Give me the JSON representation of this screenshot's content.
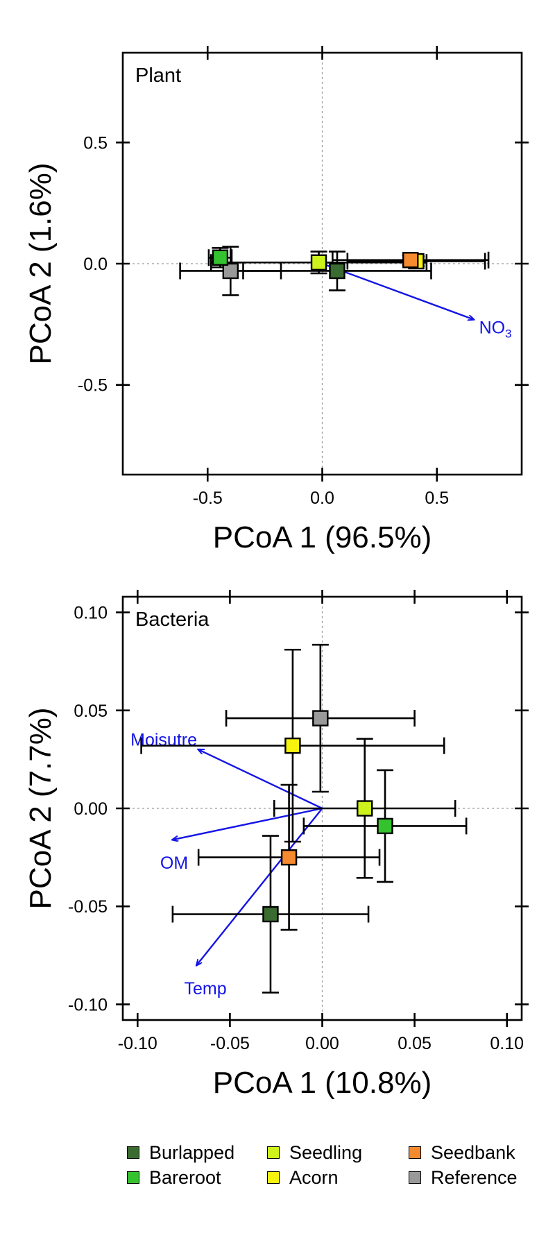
{
  "legend": [
    {
      "name": "Burlapped",
      "color": "#3a6b30"
    },
    {
      "name": "Bareroot",
      "color": "#35c22f"
    },
    {
      "name": "Seedling",
      "color": "#cdf21c"
    },
    {
      "name": "Acorn",
      "color": "#f6f30f"
    },
    {
      "name": "Seedbank",
      "color": "#f58a2e"
    },
    {
      "name": "Reference",
      "color": "#999999"
    }
  ],
  "chart_data": [
    {
      "type": "scatter",
      "panel_label": "Plant",
      "xlabel": "PCoA 1 (96.5%)",
      "ylabel": "PCoA 2 (1.6%)",
      "xlim": [
        -0.87,
        0.87
      ],
      "ylim": [
        -0.87,
        0.87
      ],
      "xticks": [
        {
          "v": -0.5,
          "label": "-0.5"
        },
        {
          "v": 0.0,
          "label": "0.0"
        },
        {
          "v": 0.5,
          "label": "0.5"
        }
      ],
      "yticks": [
        {
          "v": 0.5,
          "label": "0.5"
        },
        {
          "v": 0.0,
          "label": "0.0"
        },
        {
          "v": -0.5,
          "label": "-0.5"
        }
      ],
      "points": [
        {
          "group": "Reference",
          "x": -0.4,
          "y": -0.03,
          "xerr": 0.22,
          "yerr": 0.1
        },
        {
          "group": "Burlapped",
          "x": 0.065,
          "y": -0.03,
          "xerr": 0.41,
          "yerr": 0.08
        },
        {
          "group": "Seedling",
          "x": -0.015,
          "y": 0.005,
          "xerr": 0.47,
          "yerr": 0.045
        },
        {
          "group": "Acorn",
          "x": 0.41,
          "y": 0.01,
          "xerr": 0.3,
          "yerr": 0.02
        },
        {
          "group": "Seedbank",
          "x": 0.385,
          "y": 0.015,
          "xerr": 0.34,
          "yerr": 0.02
        },
        {
          "group": "Bareroot",
          "x": -0.445,
          "y": 0.025,
          "xerr": 0.05,
          "yerr": 0.04
        }
      ],
      "vectors": [
        {
          "label": "NO",
          "label_sub": "3",
          "x": 0.66,
          "y": -0.23
        }
      ]
    },
    {
      "type": "scatter",
      "panel_label": "Bacteria",
      "xlabel": "PCoA 1 (10.8%)",
      "ylabel": "PCoA 2 (7.7%)",
      "xlim": [
        -0.108,
        0.108
      ],
      "ylim": [
        -0.108,
        0.108
      ],
      "xticks": [
        {
          "v": -0.1,
          "label": "-0.10"
        },
        {
          "v": -0.05,
          "label": "-0.05"
        },
        {
          "v": 0.0,
          "label": "0.00"
        },
        {
          "v": 0.05,
          "label": "0.05"
        },
        {
          "v": 0.1,
          "label": "0.10"
        }
      ],
      "yticks": [
        {
          "v": 0.1,
          "label": "0.10"
        },
        {
          "v": 0.05,
          "label": "0.05"
        },
        {
          "v": 0.0,
          "label": "0.00"
        },
        {
          "v": -0.05,
          "label": "-0.05"
        },
        {
          "v": -0.1,
          "label": "-0.10"
        }
      ],
      "points": [
        {
          "group": "Reference",
          "x": -0.001,
          "y": 0.046,
          "xerr": 0.051,
          "yerr": 0.0375
        },
        {
          "group": "Acorn",
          "x": -0.016,
          "y": 0.032,
          "xerr": 0.082,
          "yerr": 0.049
        },
        {
          "group": "Seedling",
          "x": 0.023,
          "y": 0.0,
          "xerr": 0.049,
          "yerr": 0.0355
        },
        {
          "group": "Bareroot",
          "x": 0.034,
          "y": -0.009,
          "xerr": 0.044,
          "yerr": 0.0285
        },
        {
          "group": "Seedbank",
          "x": -0.018,
          "y": -0.025,
          "xerr": 0.049,
          "yerr": 0.037
        },
        {
          "group": "Burlapped",
          "x": -0.028,
          "y": -0.054,
          "xerr": 0.053,
          "yerr": 0.04
        }
      ],
      "vectors": [
        {
          "label": "Moisutre",
          "x": -0.067,
          "y": 0.03
        },
        {
          "label": "OM",
          "x": -0.081,
          "y": -0.016
        },
        {
          "label": "Temp",
          "x": -0.068,
          "y": -0.08
        }
      ]
    }
  ]
}
